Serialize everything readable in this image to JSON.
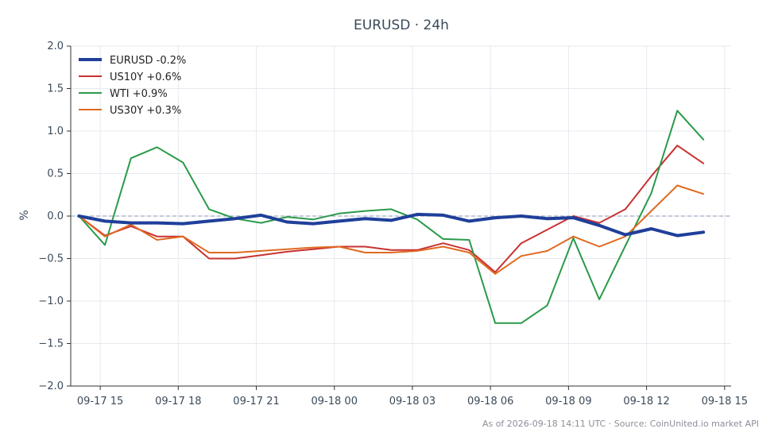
{
  "chart_data": {
    "type": "line",
    "title": "EURUSD · 24h",
    "ylabel": "%",
    "ylim": [
      -2.0,
      2.0
    ],
    "yticks": [
      2.0,
      1.5,
      1.0,
      0.5,
      0.0,
      -0.5,
      -1.0,
      -1.5,
      -2.0
    ],
    "ytick_labels": [
      "2.0",
      "1.5",
      "1.0",
      "0.5",
      "0.0",
      "−0.5",
      "−1.0",
      "−1.5",
      "−2.0"
    ],
    "xlim": [
      "09-17 13:52",
      "09-18 15:15"
    ],
    "xticks": [
      "09-17 15:00",
      "09-17 18:00",
      "09-17 21:00",
      "09-18 00:00",
      "09-18 03:00",
      "09-18 06:00",
      "09-18 09:00",
      "09-18 12:00",
      "09-18 15:00"
    ],
    "xtick_labels": [
      "09-17 15",
      "09-17 18",
      "09-17 21",
      "09-18 00",
      "09-18 03",
      "09-18 06",
      "09-18 09",
      "09-18 12",
      "09-18 15"
    ],
    "x": [
      "09-17 14:11",
      "09-17 15:11",
      "09-17 16:11",
      "09-17 17:11",
      "09-17 18:11",
      "09-17 19:11",
      "09-17 20:11",
      "09-17 21:11",
      "09-17 22:11",
      "09-17 23:11",
      "09-18 00:11",
      "09-18 01:11",
      "09-18 02:11",
      "09-18 03:11",
      "09-18 04:11",
      "09-18 05:11",
      "09-18 06:11",
      "09-18 07:11",
      "09-18 08:11",
      "09-18 09:11",
      "09-18 10:11",
      "09-18 11:11",
      "09-18 12:11",
      "09-18 13:11",
      "09-18 14:11"
    ],
    "series": [
      {
        "name": "US10Y +0.6%",
        "color": "#c83232",
        "width": 2,
        "values": [
          0.0,
          -0.23,
          -0.12,
          -0.24,
          -0.24,
          -0.5,
          -0.5,
          -0.46,
          -0.42,
          -0.39,
          -0.36,
          -0.36,
          -0.4,
          -0.4,
          -0.32,
          -0.4,
          -0.66,
          -0.32,
          -0.16,
          0.0,
          -0.08,
          0.08,
          0.47,
          0.83,
          0.62
        ]
      },
      {
        "name": "WTI +0.9%",
        "color": "#2a9a4a",
        "width": 2,
        "values": [
          0.0,
          -0.34,
          0.68,
          0.81,
          0.63,
          0.08,
          -0.03,
          -0.08,
          -0.01,
          -0.04,
          0.03,
          0.06,
          0.08,
          -0.04,
          -0.27,
          -0.28,
          -1.26,
          -1.26,
          -1.05,
          -0.26,
          -0.98,
          -0.35,
          0.27,
          1.24,
          0.9
        ]
      },
      {
        "name": "US30Y +0.3%",
        "color": "#e06a20",
        "width": 2,
        "values": [
          0.0,
          -0.24,
          -0.1,
          -0.28,
          -0.24,
          -0.43,
          -0.43,
          -0.41,
          -0.39,
          -0.37,
          -0.36,
          -0.43,
          -0.43,
          -0.41,
          -0.36,
          -0.43,
          -0.68,
          -0.47,
          -0.41,
          -0.24,
          -0.36,
          -0.24,
          0.06,
          0.36,
          0.26
        ]
      },
      {
        "name": "EURUSD -0.2%",
        "color": "#1f3f9a",
        "width": 4,
        "values": [
          0.0,
          -0.06,
          -0.08,
          -0.08,
          -0.09,
          -0.06,
          -0.03,
          0.01,
          -0.07,
          -0.09,
          -0.06,
          -0.03,
          -0.05,
          0.02,
          0.01,
          -0.06,
          -0.02,
          0.0,
          -0.03,
          -0.02,
          -0.11,
          -0.22,
          -0.15,
          -0.23,
          -0.19
        ]
      }
    ],
    "legend": [
      "EURUSD -0.2%",
      "US10Y +0.6%",
      "WTI +0.9%",
      "US30Y +0.3%"
    ],
    "legend_placement": "top-left",
    "zero_line": true,
    "grid": true
  },
  "footer_text": "As of 2026-09-18 14:11 UTC · Source: CoinUnited.io market API"
}
